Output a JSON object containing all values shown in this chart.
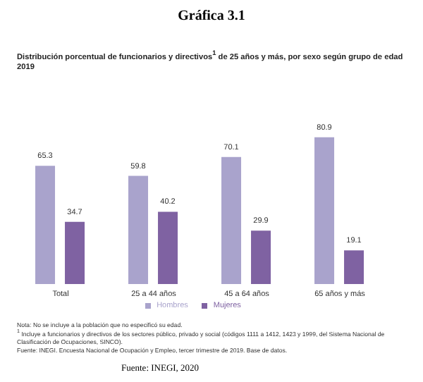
{
  "chart_data": {
    "type": "bar",
    "title": "Gráfica 3.1",
    "subtitle": "Distribución porcentual de funcionarios y directivos$^{1}$ de 25 años y más, por sexo según grupo de edad\n2019",
    "categories": [
      "Total",
      "25 a 44 años",
      "45 a 64 años",
      "65 años y más"
    ],
    "series": [
      {
        "name": "Hombres",
        "color": "#a9a3cc",
        "values": [
          65.3,
          59.8,
          70.1,
          80.9
        ]
      },
      {
        "name": "Mujeres",
        "color": "#7f62a2",
        "values": [
          34.7,
          40.2,
          29.9,
          19.1
        ]
      }
    ],
    "data_labels": true,
    "grid": false,
    "legend": "bottom",
    "annotations": [
      "Nota: No se incluye a la población que no especificó su edad.",
      "$^{1}$ Incluye a funcionarios y directivos de los sectores público, privado y social (códigos 1111 a 1412, 1423 y 1999, del Sistema Nacional de Clasificación de Ocupaciones, SINCO).",
      "Fuente: INEGI. Encuesta Nacional de Ocupación y Empleo, tercer trimestre de 2019. Base de datos.",
      "Fuente: INEGI, 2020"
    ]
  }
}
